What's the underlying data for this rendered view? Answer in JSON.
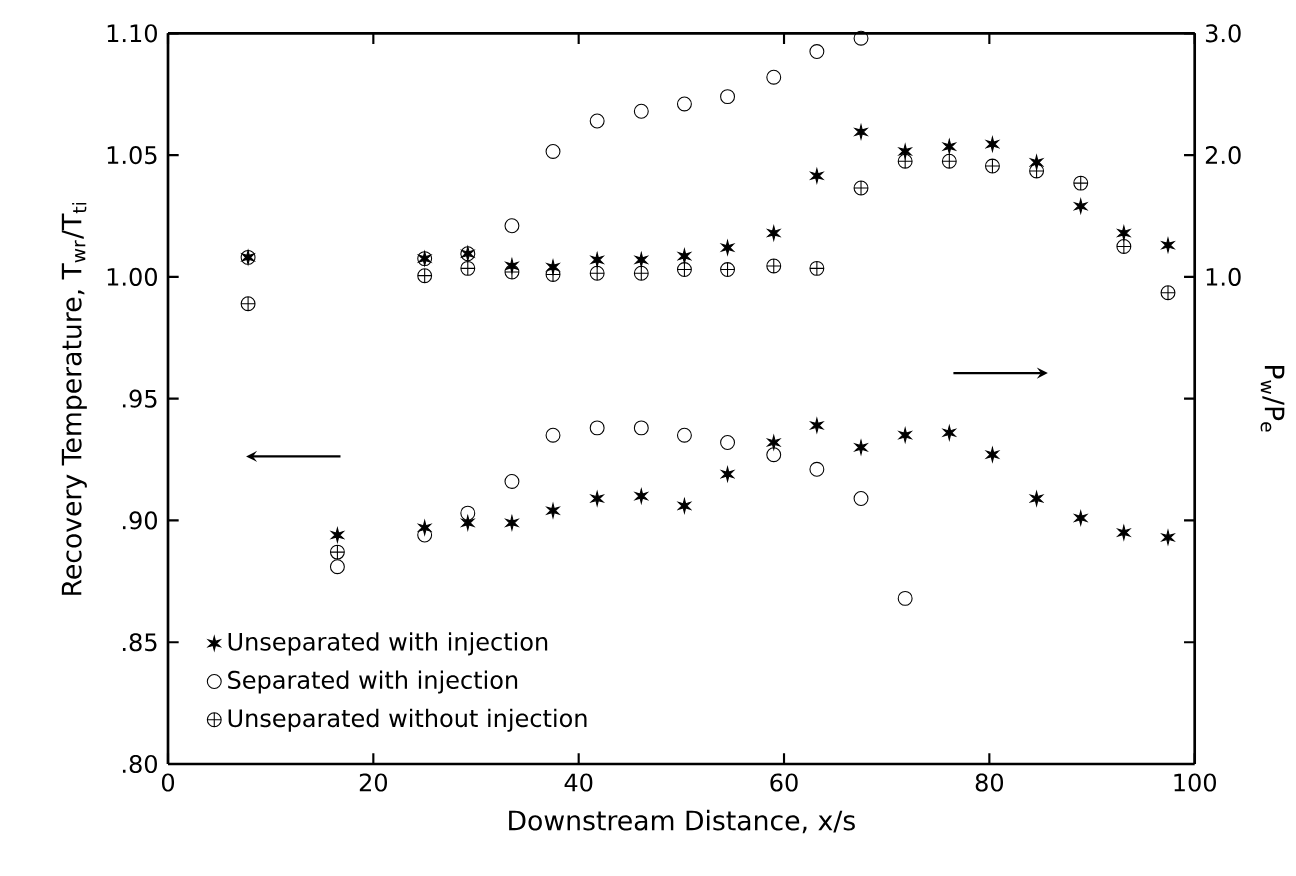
{
  "chart_data": {
    "type": "scatter",
    "xlabel": "Downstream Distance, x/s",
    "ylabel": "Recovery Temperature, T$_{wr}$/T$_{ti}$",
    "y2label": "P$_{w}$/P$_{e}$",
    "xlim": [
      0,
      100
    ],
    "xticks": [
      0,
      20,
      40,
      60,
      80,
      100
    ],
    "ylim": [
      0.8,
      1.1
    ],
    "yticks": [
      {
        "value": 0.8,
        "label": ".80"
      },
      {
        "value": 0.85,
        "label": ".85"
      },
      {
        "value": 0.9,
        "label": ".90"
      },
      {
        "value": 0.95,
        "label": ".95"
      },
      {
        "value": 1.0,
        "label": "1.00"
      },
      {
        "value": 1.05,
        "label": "1.05"
      },
      {
        "value": 1.1,
        "label": "1.10"
      }
    ],
    "y2lim": [
      -3,
      3
    ],
    "y2ticks": [
      {
        "value": -2,
        "label": null
      },
      {
        "value": -1,
        "label": null
      },
      {
        "value": 0,
        "label": null
      },
      {
        "value": 1,
        "label": "1.0"
      },
      {
        "value": 2,
        "label": "2.0"
      },
      {
        "value": 3,
        "label": "3.0"
      }
    ],
    "legend": "bottom left",
    "grid": false,
    "series": [
      {
        "name": "Unseparated with injection",
        "color": "#000000",
        "marker": "star",
        "x": [
          16.5,
          25.0,
          29.2,
          33.5,
          37.5,
          41.8,
          46.1,
          50.3,
          54.5,
          59.0,
          63.2,
          67.5,
          71.8,
          76.1,
          80.3,
          84.6,
          88.9,
          93.1,
          97.4
        ],
        "values": [
          0.894,
          0.897,
          0.899,
          0.899,
          0.904,
          0.909,
          0.91,
          0.906,
          0.919,
          0.932,
          0.939,
          0.93,
          0.935,
          0.936,
          0.927,
          0.909,
          0.901,
          0.895,
          0.893
        ]
      },
      {
        "name": "Separated with injection",
        "color": "#000000",
        "marker": "circle",
        "x": [
          16.5,
          25.0,
          29.2,
          33.5,
          37.5,
          41.8,
          46.1,
          50.3,
          54.5,
          59.0,
          63.2,
          67.5,
          71.8
        ],
        "values": [
          0.881,
          0.894,
          0.903,
          0.916,
          0.935,
          0.938,
          0.938,
          0.935,
          0.932,
          0.927,
          0.921,
          0.909,
          0.868
        ]
      },
      {
        "name": "Unseparated without injection",
        "color": "#000000",
        "marker": "cross",
        "x": [
          16.5
        ],
        "values": [
          0.887
        ]
      },
      {
        "color": "#000000",
        "marker": "star",
        "axis": "y2",
        "x": [
          7.8,
          25.0,
          29.2,
          33.5,
          37.5,
          41.8,
          46.1,
          50.3,
          54.5,
          59.0,
          63.2,
          67.5,
          71.8,
          76.1,
          80.3,
          84.6,
          88.9,
          93.1,
          97.4
        ],
        "values": [
          1.16,
          1.15,
          1.19,
          1.09,
          1.08,
          1.14,
          1.14,
          1.17,
          1.24,
          1.36,
          1.83,
          2.19,
          2.03,
          2.07,
          2.09,
          1.94,
          1.58,
          1.36,
          1.26
        ]
      },
      {
        "color": "#000000",
        "marker": "circle",
        "axis": "y2",
        "x": [
          7.8,
          25.0,
          29.2,
          33.5,
          37.5,
          41.8,
          46.1,
          50.3,
          54.5,
          59.0,
          63.2,
          67.5
        ],
        "values": [
          1.16,
          1.15,
          1.19,
          1.42,
          2.03,
          2.28,
          2.36,
          2.42,
          2.48,
          2.64,
          2.85,
          2.96
        ]
      },
      {
        "color": "#000000",
        "marker": "cross",
        "axis": "y2",
        "x": [
          7.8,
          25.0,
          29.2,
          33.5,
          37.5,
          41.8,
          46.1,
          50.3,
          54.5,
          59.0,
          63.2,
          67.5,
          71.8,
          76.1,
          80.3,
          84.6,
          88.9,
          93.1,
          97.4
        ],
        "values": [
          0.78,
          1.01,
          1.07,
          1.04,
          1.02,
          1.03,
          1.03,
          1.06,
          1.06,
          1.09,
          1.07,
          1.73,
          1.95,
          1.95,
          1.91,
          1.87,
          1.77,
          1.25,
          0.87
        ]
      }
    ]
  }
}
